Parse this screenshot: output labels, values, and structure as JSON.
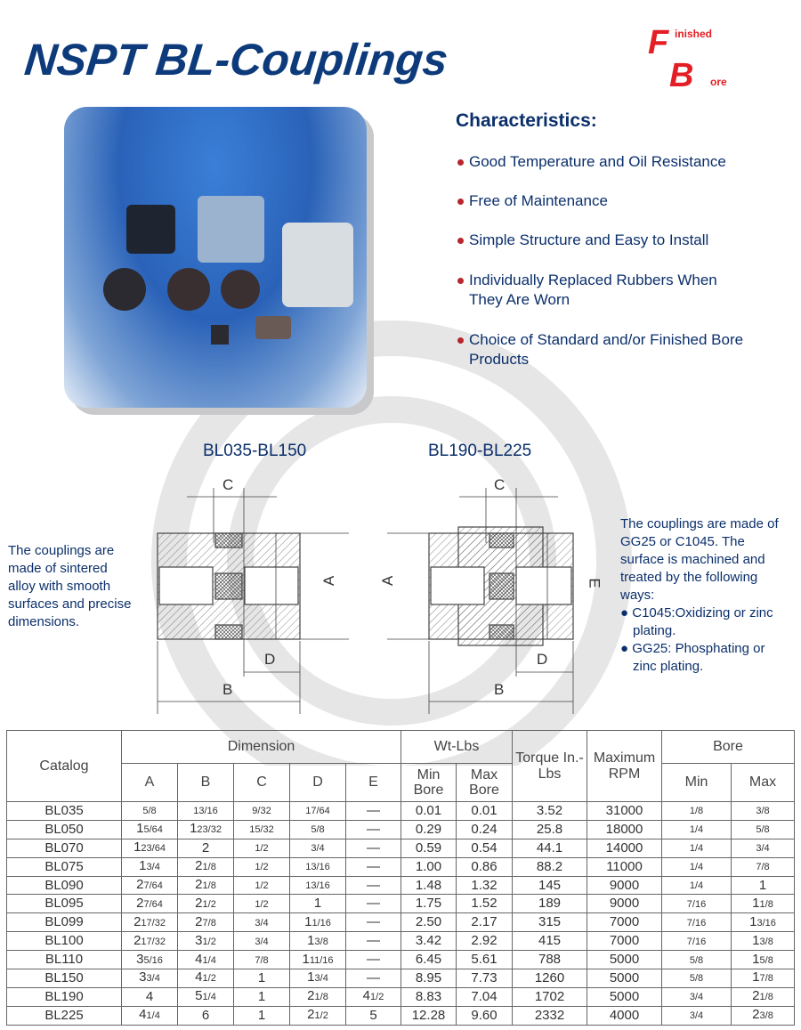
{
  "title": "NSPT BL-Couplings",
  "logo": {
    "letter1": "F",
    "word1": "inished",
    "letter2": "B",
    "word2": "ore",
    "color": "#e31e24"
  },
  "characteristics": {
    "heading": "Characteristics:",
    "items": [
      "Good Temperature and Oil Resistance",
      "Free of Maintenance",
      "Simple Structure and Easy to Install",
      "Individually Replaced Rubbers When They Are Worn",
      "Choice of Standard and/or Finished Bore Products"
    ]
  },
  "diagrams": {
    "left_label": "BL035-BL150",
    "right_label": "BL190-BL225",
    "dims": {
      "a": "A",
      "b": "B",
      "c": "C",
      "d": "D",
      "e": "E"
    }
  },
  "notes": {
    "left": "The couplings are made of sintered alloy with smooth surfaces and precise dimensions.",
    "right_intro": "The couplings are made of GG25 or C1045. The surface is machined and treated by the following ways:",
    "right_items": [
      "C1045:Oxidizing or zinc plating.",
      "GG25: Phosphating or zinc plating."
    ]
  },
  "table": {
    "headers": {
      "catalog": "Catalog",
      "dimension": "Dimension",
      "wt": "Wt-Lbs",
      "torque": "Torque In.-Lbs",
      "rpm": "Maximum RPM",
      "bore": "Bore",
      "a": "A",
      "b": "B",
      "c": "C",
      "d": "D",
      "e": "E",
      "min_bore": "Min Bore",
      "max_bore": "Max Bore",
      "min": "Min",
      "max": "Max"
    },
    "rows": [
      [
        "BL035",
        "5/8",
        "13/16",
        "9/32",
        "17/64",
        "—",
        "0.01",
        "0.01",
        "3.52",
        "31000",
        "1/8",
        "3/8"
      ],
      [
        "BL050",
        "1 5/64",
        "1 23/32",
        "15/32",
        "5/8",
        "—",
        "0.29",
        "0.24",
        "25.8",
        "18000",
        "1/4",
        "5/8"
      ],
      [
        "BL070",
        "1 23/64",
        "2",
        "1/2",
        "3/4",
        "—",
        "0.59",
        "0.54",
        "44.1",
        "14000",
        "1/4",
        "3/4"
      ],
      [
        "BL075",
        "1 3/4",
        "2 1/8",
        "1/2",
        "13/16",
        "—",
        "1.00",
        "0.86",
        "88.2",
        "11000",
        "1/4",
        "7/8"
      ],
      [
        "BL090",
        "2 7/64",
        "2 1/8",
        "1/2",
        "13/16",
        "—",
        "1.48",
        "1.32",
        "145",
        "9000",
        "1/4",
        "1"
      ],
      [
        "BL095",
        "2 7/64",
        "2 1/2",
        "1/2",
        "1",
        "—",
        "1.75",
        "1.52",
        "189",
        "9000",
        "7/16",
        "1 1/8"
      ],
      [
        "BL099",
        "2 17/32",
        "2 7/8",
        "3/4",
        "1 1/16",
        "—",
        "2.50",
        "2.17",
        "315",
        "7000",
        "7/16",
        "1 3/16"
      ],
      [
        "BL100",
        "2 17/32",
        "3 1/2",
        "3/4",
        "1 3/8",
        "—",
        "3.42",
        "2.92",
        "415",
        "7000",
        "7/16",
        "1 3/8"
      ],
      [
        "BL110",
        "3 5/16",
        "4 1/4",
        "7/8",
        "1 11/16",
        "—",
        "6.45",
        "5.61",
        "788",
        "5000",
        "5/8",
        "1 5/8"
      ],
      [
        "BL150",
        "3 3/4",
        "4 1/2",
        "1",
        "1 3/4",
        "—",
        "8.95",
        "7.73",
        "1260",
        "5000",
        "5/8",
        "1 7/8"
      ],
      [
        "BL190",
        "4",
        "5 1/4",
        "1",
        "2 1/8",
        "4 1/2",
        "8.83",
        "7.04",
        "1702",
        "5000",
        "3/4",
        "2 1/8"
      ],
      [
        "BL225",
        "4 1/4",
        "6",
        "1",
        "2 1/2",
        "5",
        "12.28",
        "9.60",
        "2332",
        "4000",
        "3/4",
        "2 3/8"
      ]
    ]
  }
}
